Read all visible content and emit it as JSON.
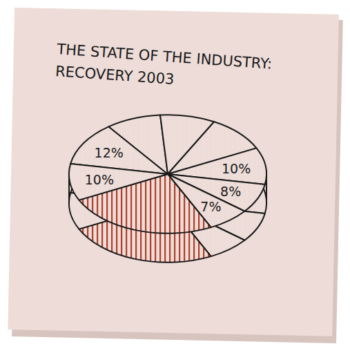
{
  "chart_data": {
    "type": "pie",
    "title": "THE STATE OF THE INDUSTRY: RECOVERY 2003",
    "values": [
      12,
      9,
      9,
      10,
      10,
      8,
      7,
      25,
      10
    ],
    "value_labels": [
      "12%",
      null,
      null,
      null,
      "10%",
      "8%",
      "7%",
      null,
      "10%"
    ],
    "colors": [
      "#eedfdb",
      "#eedfdb",
      "#eedfdb",
      "#eedfdb",
      "#eedfdb",
      "#eedfdb",
      "#eedfdb",
      "#b0402a",
      "#eedfdb"
    ],
    "data_labels": true
  }
}
